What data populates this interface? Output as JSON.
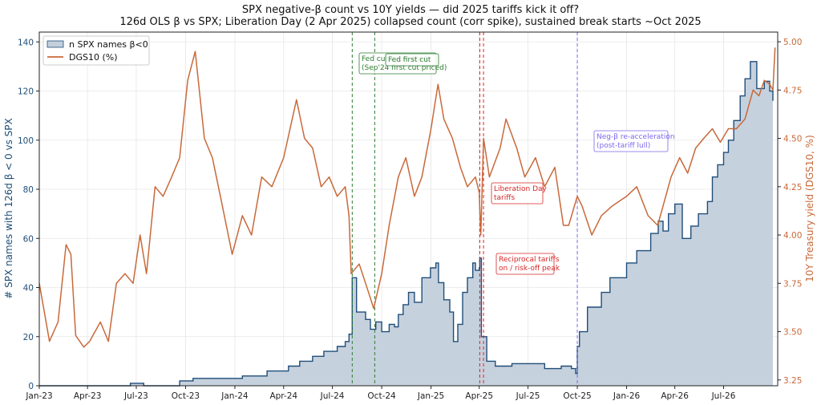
{
  "chart_data": {
    "type": "area+line",
    "title": "SPX negative-β count vs 10Y yields — did 2025 tariffs kick it off?",
    "subtitle": "126d OLS β vs SPX; Liberation Day (2 Apr 2025) collapsed count (corr spike), sustained break starts ~Oct 2025",
    "ylabel_left": "# SPX names with 126d β < 0 vs SPX",
    "ylabel_right": "10Y Treasury yield (DGS10, %)",
    "x_ticks": [
      "Jan-23",
      "Apr-23",
      "Jul-23",
      "Oct-23",
      "Jan-24",
      "Apr-24",
      "Jul-24",
      "Oct-24",
      "Jan-25",
      "Apr-25",
      "Jul-25",
      "Oct-25",
      "Jan-26",
      "Apr-26",
      "Jul-26"
    ],
    "xlim": [
      "2023-01-01",
      "2026-10-10"
    ],
    "ylim_left": [
      0,
      144
    ],
    "ylim_right": [
      3.22,
      5.05
    ],
    "y_ticks_left": [
      0,
      20,
      40,
      60,
      80,
      100,
      120,
      140
    ],
    "y_ticks_right": [
      "3.25",
      "3.50",
      "3.75",
      "4.00",
      "4.25",
      "4.50",
      "4.75",
      "5.00"
    ],
    "legend_position": "top-left",
    "colors": {
      "count": "#1f4e79",
      "count_fill": "#c3cfdc",
      "yield": "#c8693a",
      "fed": "#2e7d32",
      "tariff": "#d62728",
      "reaccel": "#7b68ee"
    },
    "series": [
      {
        "name": "n SPX names β<0",
        "axis": "left",
        "x": [
          "2023-01-01",
          "2023-06-01",
          "2023-06-20",
          "2023-07-15",
          "2023-09-20",
          "2023-10-15",
          "2023-12-01",
          "2024-01-15",
          "2024-03-01",
          "2024-04-10",
          "2024-05-01",
          "2024-05-25",
          "2024-06-15",
          "2024-07-10",
          "2024-07-25",
          "2024-08-01",
          "2024-08-07",
          "2024-08-15",
          "2024-09-01",
          "2024-09-10",
          "2024-09-20",
          "2024-10-01",
          "2024-10-15",
          "2024-10-25",
          "2024-11-01",
          "2024-11-10",
          "2024-11-20",
          "2024-12-01",
          "2024-12-15",
          "2024-12-31",
          "2025-01-10",
          "2025-01-15",
          "2025-01-25",
          "2025-02-05",
          "2025-02-12",
          "2025-02-20",
          "2025-03-01",
          "2025-03-10",
          "2025-03-20",
          "2025-03-25",
          "2025-04-01",
          "2025-04-02",
          "2025-04-05",
          "2025-04-15",
          "2025-05-01",
          "2025-06-01",
          "2025-07-01",
          "2025-08-01",
          "2025-09-01",
          "2025-09-20",
          "2025-09-28",
          "2025-10-01",
          "2025-10-05",
          "2025-10-20",
          "2025-11-15",
          "2025-12-01",
          "2026-01-01",
          "2026-01-20",
          "2026-02-15",
          "2026-03-01",
          "2026-03-10",
          "2026-03-20",
          "2026-04-01",
          "2026-04-15",
          "2026-05-01",
          "2026-05-15",
          "2026-06-01",
          "2026-06-10",
          "2026-06-20",
          "2026-07-01",
          "2026-07-10",
          "2026-07-20",
          "2026-08-01",
          "2026-08-10",
          "2026-08-20",
          "2026-09-01",
          "2026-09-15",
          "2026-09-25",
          "2026-10-01"
        ],
        "values": [
          0,
          0,
          1,
          0,
          2,
          3,
          3,
          4,
          6,
          8,
          10,
          12,
          14,
          16,
          18,
          21,
          44,
          30,
          27,
          23,
          26,
          22,
          25,
          24,
          29,
          33,
          38,
          34,
          44,
          48,
          50,
          42,
          35,
          30,
          18,
          25,
          38,
          44,
          50,
          47,
          48,
          52,
          20,
          10,
          8,
          9,
          9,
          7,
          8,
          7,
          5,
          16,
          22,
          32,
          38,
          44,
          50,
          55,
          62,
          67,
          63,
          70,
          74,
          60,
          65,
          70,
          75,
          85,
          90,
          95,
          100,
          108,
          118,
          125,
          132,
          121,
          124,
          120,
          116
        ]
      },
      {
        "name": "DGS10 (%)",
        "axis": "right",
        "x": [
          "2023-01-01",
          "2023-01-20",
          "2023-02-05",
          "2023-02-20",
          "2023-03-01",
          "2023-03-10",
          "2023-03-25",
          "2023-04-05",
          "2023-04-25",
          "2023-05-10",
          "2023-05-25",
          "2023-06-10",
          "2023-06-25",
          "2023-07-08",
          "2023-07-20",
          "2023-08-05",
          "2023-08-20",
          "2023-09-05",
          "2023-09-20",
          "2023-10-05",
          "2023-10-19",
          "2023-11-05",
          "2023-11-20",
          "2023-12-05",
          "2023-12-27",
          "2024-01-15",
          "2024-02-01",
          "2024-02-20",
          "2024-03-10",
          "2024-04-01",
          "2024-04-25",
          "2024-05-10",
          "2024-05-25",
          "2024-06-10",
          "2024-06-25",
          "2024-07-10",
          "2024-07-25",
          "2024-08-01",
          "2024-08-05",
          "2024-08-20",
          "2024-09-01",
          "2024-09-16",
          "2024-10-01",
          "2024-10-15",
          "2024-11-01",
          "2024-11-15",
          "2024-12-01",
          "2024-12-15",
          "2025-01-01",
          "2025-01-14",
          "2025-01-25",
          "2025-02-10",
          "2025-02-25",
          "2025-03-10",
          "2025-03-25",
          "2025-04-01",
          "2025-04-04",
          "2025-04-09",
          "2025-04-20",
          "2025-05-10",
          "2025-05-21",
          "2025-06-10",
          "2025-06-25",
          "2025-07-15",
          "2025-08-01",
          "2025-08-20",
          "2025-09-05",
          "2025-09-15",
          "2025-10-01",
          "2025-10-10",
          "2025-10-28",
          "2025-11-15",
          "2025-12-05",
          "2026-01-01",
          "2026-01-20",
          "2026-02-10",
          "2026-02-28",
          "2026-03-10",
          "2026-03-25",
          "2026-04-10",
          "2026-04-25",
          "2026-05-10",
          "2026-05-25",
          "2026-06-10",
          "2026-06-25",
          "2026-07-10",
          "2026-07-25",
          "2026-08-10",
          "2026-08-25",
          "2026-09-05",
          "2026-09-15",
          "2026-09-25",
          "2026-10-01",
          "2026-10-05"
        ],
        "values": [
          3.75,
          3.45,
          3.55,
          3.95,
          3.9,
          3.48,
          3.42,
          3.45,
          3.55,
          3.45,
          3.75,
          3.8,
          3.75,
          4.0,
          3.8,
          4.25,
          4.2,
          4.3,
          4.4,
          4.8,
          4.95,
          4.5,
          4.4,
          4.2,
          3.9,
          4.1,
          4.0,
          4.3,
          4.25,
          4.4,
          4.7,
          4.5,
          4.45,
          4.25,
          4.3,
          4.2,
          4.25,
          4.1,
          3.8,
          3.85,
          3.75,
          3.62,
          3.8,
          4.05,
          4.3,
          4.4,
          4.2,
          4.3,
          4.55,
          4.78,
          4.6,
          4.5,
          4.35,
          4.25,
          4.3,
          4.22,
          4.0,
          4.5,
          4.3,
          4.45,
          4.6,
          4.45,
          4.3,
          4.4,
          4.25,
          4.35,
          4.05,
          4.05,
          4.2,
          4.15,
          4.0,
          4.1,
          4.15,
          4.2,
          4.25,
          4.1,
          4.05,
          4.15,
          4.3,
          4.4,
          4.32,
          4.45,
          4.5,
          4.55,
          4.48,
          4.55,
          4.55,
          4.6,
          4.75,
          4.72,
          4.8,
          4.78,
          4.75,
          4.97
        ]
      }
    ],
    "annotations": [
      {
        "date": "2024-08-07",
        "text": "Fed cut cycle start\n(Sep'24 first cut priced)",
        "color": "#2e7d32"
      },
      {
        "date": "2024-09-18",
        "text": "Fed first cut",
        "color": "#2e7d32"
      },
      {
        "date": "2025-04-02",
        "text": "Liberation Day\ntariffs",
        "color": "#d62728"
      },
      {
        "date": "2025-04-09",
        "text": "Reciprocal tariffs\non / risk-off peak",
        "color": "#d62728"
      },
      {
        "date": "2025-10-01",
        "text": "Neg-β re-acceleration\n(post-tariff lull)",
        "color": "#7b68ee"
      }
    ]
  }
}
